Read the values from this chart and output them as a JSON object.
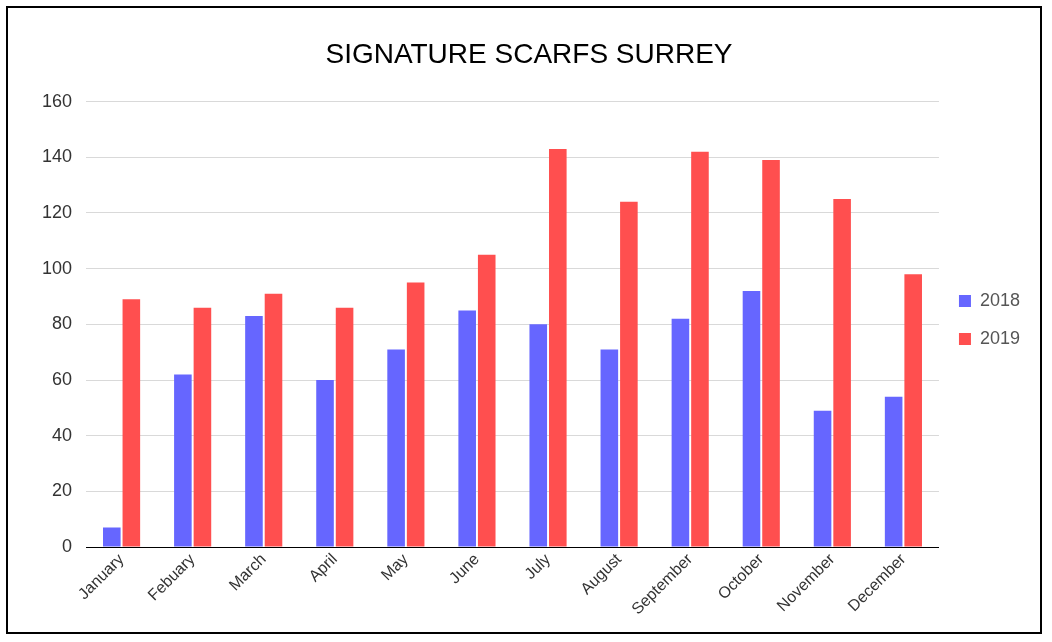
{
  "chart_data": {
    "type": "bar",
    "title": "SIGNATURE SCARFS SURREY",
    "categories": [
      "January",
      "Febuary",
      "March",
      "April",
      "May",
      "June",
      "July",
      "August",
      "September",
      "October",
      "November",
      "December"
    ],
    "series": [
      {
        "name": "2018",
        "color": "#6666ff",
        "values": [
          7,
          62,
          83,
          60,
          71,
          85,
          80,
          71,
          82,
          92,
          49,
          54
        ]
      },
      {
        "name": "2019",
        "color": "#ff4f4f",
        "values": [
          89,
          86,
          91,
          86,
          95,
          105,
          143,
          124,
          142,
          139,
          125,
          98
        ]
      }
    ],
    "ylim": [
      0,
      160
    ],
    "yticks": [
      0,
      20,
      40,
      60,
      80,
      100,
      120,
      140,
      160
    ],
    "grid": "y",
    "legend": "right"
  }
}
